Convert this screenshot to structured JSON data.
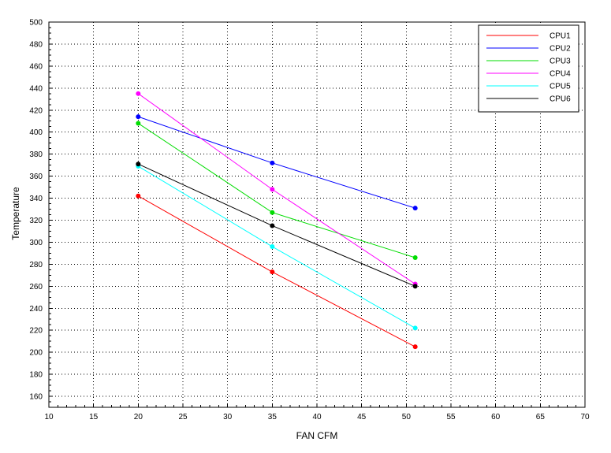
{
  "chart_data": {
    "type": "line",
    "title": "",
    "xlabel": "FAN CFM",
    "ylabel": "Temperature",
    "xlim": [
      10,
      70
    ],
    "ylim": [
      150,
      500
    ],
    "xticks": [
      10,
      15,
      20,
      25,
      30,
      35,
      40,
      45,
      50,
      55,
      60,
      65,
      70
    ],
    "yticks": [
      160,
      180,
      200,
      220,
      240,
      260,
      280,
      300,
      320,
      340,
      360,
      380,
      400,
      420,
      440,
      460,
      480,
      500
    ],
    "grid": true,
    "legend_position": "top-right",
    "x": [
      20,
      35,
      51
    ],
    "series": [
      {
        "name": "CPU1",
        "color": "#ff0000",
        "values": [
          342,
          273,
          205
        ]
      },
      {
        "name": "CPU2",
        "color": "#0000ff",
        "values": [
          414,
          372,
          331
        ]
      },
      {
        "name": "CPU3",
        "color": "#00dd00",
        "values": [
          408,
          327,
          286
        ]
      },
      {
        "name": "CPU4",
        "color": "#ff00ff",
        "values": [
          435,
          348,
          262
        ]
      },
      {
        "name": "CPU5",
        "color": "#00ffff",
        "values": [
          369,
          296,
          222
        ]
      },
      {
        "name": "CPU6",
        "color": "#000000",
        "values": [
          371,
          315,
          260
        ]
      }
    ]
  }
}
